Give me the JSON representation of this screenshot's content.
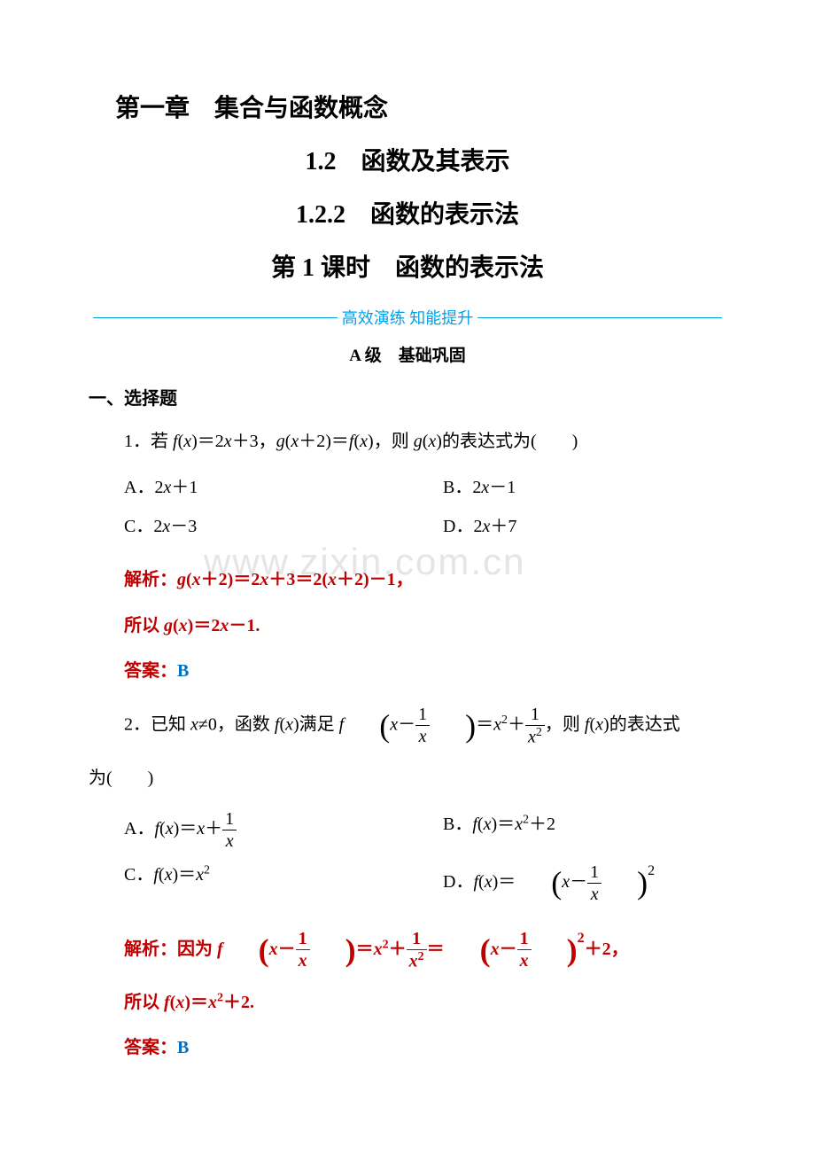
{
  "watermark": "www.zixin.com.cn",
  "chapter": "第一章　集合与函数概念",
  "section": "1.2　函数及其表示",
  "subsection": "1.2.2　函数的表示法",
  "lesson": "第 1 课时　函数的表示法",
  "divider": "高效演练 知能提升",
  "level": "A 级　基础巩固",
  "heading1": "一、选择题",
  "colors": {
    "analysis_label": "#c00000",
    "answer_label": "#c00000",
    "answer_content": "#0070c0",
    "divider_color": "#00a0e8",
    "text_color": "#000000"
  },
  "q1": {
    "stem_prefix": "1．若 ",
    "stem_f": "f",
    "stem_fx": "(x)＝2",
    "stem_x": "x",
    "stem_plus3": "＋3，",
    "stem_g": "g",
    "stem_gx2": "(x＋2)＝",
    "stem_fx2": "f",
    "stem_fx3": "(x)，则 ",
    "stem_g2": "g",
    "stem_gx4": "(x)的表达式为(　　)",
    "optA": "A．2x＋1",
    "optB": "B．2x－1",
    "optC": "C．2x－3",
    "optD": "D．2x＋7",
    "analysis_label": "解析：",
    "analysis": "g(x＋2)＝2x＋3＝2(x＋2)－1，",
    "analysis2_prefix": "所以 ",
    "analysis2": "g(x)＝2x－1.",
    "answer_label": "答案：",
    "answer": "B"
  },
  "q2": {
    "stem_prefix": "2．已知 ",
    "stem_xneq0": "x≠0，函数 ",
    "stem_f": "f",
    "stem_fx": "(x)满足 ",
    "stem_eq_mid": "＝x²＋",
    "stem_suffix": "，则 ",
    "stem_fx2": "f(x)的表达式",
    "stem_wei": "为(　　)",
    "optA_prefix": "A．",
    "optA_f": "f(x)＝x＋",
    "optB_prefix": "B．",
    "optB": "f(x)＝x²＋2",
    "optC_prefix": "C．",
    "optC": "f(x)＝x²",
    "optD_prefix": "D．",
    "optD_f": "f(x)＝",
    "analysis_label": "解析：",
    "analysis_prefix": "因为 ",
    "analysis_mid1": "＝x²＋",
    "analysis_mid2": "＝",
    "analysis_suffix": "2＋2，",
    "analysis2_prefix": "所以 ",
    "analysis2": "f(x)＝x²＋2.",
    "answer_label": "答案：",
    "answer": "B"
  }
}
